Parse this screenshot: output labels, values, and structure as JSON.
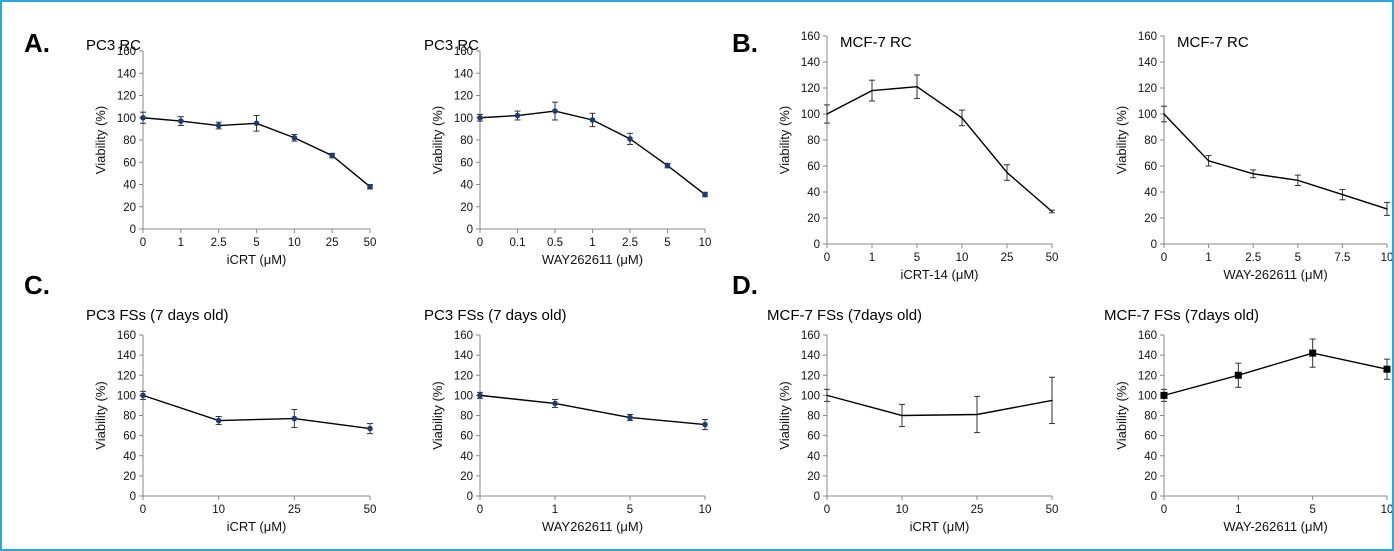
{
  "panel_labels": [
    "A.",
    "B.",
    "C.",
    "D."
  ],
  "chart_data": [
    {
      "type": "line",
      "panel": "A.",
      "title": "PC3 RC",
      "xlabel": "iCRT (μM)",
      "ylabel": "Viability (%)",
      "categories": [
        "0",
        "1",
        "2.5",
        "5",
        "10",
        "25",
        "50"
      ],
      "ylim": [
        0,
        160
      ],
      "yticks": [
        0,
        20,
        40,
        60,
        80,
        100,
        120,
        140,
        160
      ],
      "marker": "circle",
      "series": [
        {
          "values": [
            100,
            97,
            93,
            95,
            82,
            66,
            38
          ],
          "errors": [
            5,
            4,
            3,
            7,
            3,
            2,
            2
          ]
        }
      ]
    },
    {
      "type": "line",
      "panel": "",
      "title": "PC3 RC",
      "xlabel": "WAY262611 (μM)",
      "ylabel": "Viability (%)",
      "categories": [
        "0",
        "0.1",
        "0.5",
        "1",
        "2.5",
        "5",
        "10"
      ],
      "ylim": [
        0,
        160
      ],
      "yticks": [
        0,
        20,
        40,
        60,
        80,
        100,
        120,
        140,
        160
      ],
      "marker": "circle",
      "series": [
        {
          "values": [
            100,
            102,
            106,
            98,
            81,
            57,
            31
          ],
          "errors": [
            3,
            4,
            8,
            6,
            5,
            2,
            2
          ]
        }
      ]
    },
    {
      "type": "line",
      "panel": "B.",
      "title": "MCF-7 RC",
      "xlabel": "iCRT-14  (μM)",
      "ylabel": "Viability (%)",
      "categories": [
        "0",
        "1",
        "5",
        "10",
        "25",
        "50"
      ],
      "ylim": [
        0,
        160
      ],
      "yticks": [
        0,
        20,
        40,
        60,
        80,
        100,
        120,
        140,
        160
      ],
      "marker": "none",
      "series": [
        {
          "values": [
            100,
            118,
            121,
            97,
            55,
            25
          ],
          "errors": [
            7,
            8,
            9,
            6,
            6,
            1
          ]
        }
      ]
    },
    {
      "type": "line",
      "panel": "",
      "title": "MCF-7 RC",
      "xlabel": "WAY-262611 (μM)",
      "ylabel": "Viability (%)",
      "categories": [
        "0",
        "1",
        "2.5",
        "5",
        "7.5",
        "10"
      ],
      "ylim": [
        0,
        160
      ],
      "yticks": [
        0,
        20,
        40,
        60,
        80,
        100,
        120,
        140,
        160
      ],
      "marker": "none",
      "series": [
        {
          "values": [
            100,
            64,
            54,
            49,
            38,
            27
          ],
          "errors": [
            6,
            4,
            3,
            4,
            4,
            5
          ]
        }
      ]
    },
    {
      "type": "line",
      "panel": "C.",
      "title": "PC3 FSs (7 days old)",
      "xlabel": "iCRT (μM)",
      "ylabel": "Viability (%)",
      "categories": [
        "0",
        "10",
        "25",
        "50"
      ],
      "ylim": [
        0,
        160
      ],
      "yticks": [
        0,
        20,
        40,
        60,
        80,
        100,
        120,
        140,
        160
      ],
      "marker": "circle",
      "series": [
        {
          "values": [
            100,
            75,
            77,
            67
          ],
          "errors": [
            4,
            4,
            9,
            5
          ]
        }
      ]
    },
    {
      "type": "line",
      "panel": "",
      "title": "PC3 FSs (7 days old)",
      "xlabel": "WAY262611 (μM)",
      "ylabel": "Viability (%)",
      "categories": [
        "0",
        "1",
        "5",
        "10"
      ],
      "ylim": [
        0,
        160
      ],
      "yticks": [
        0,
        20,
        40,
        60,
        80,
        100,
        120,
        140,
        160
      ],
      "marker": "circle",
      "series": [
        {
          "values": [
            100,
            92,
            78,
            71
          ],
          "errors": [
            3,
            4,
            3,
            5
          ]
        }
      ]
    },
    {
      "type": "line",
      "panel": "D.",
      "title": "MCF-7 FSs (7days old)",
      "xlabel": "iCRT (μM)",
      "ylabel": "Viability (%)",
      "categories": [
        "0",
        "10",
        "25",
        "50"
      ],
      "ylim": [
        0,
        160
      ],
      "yticks": [
        0,
        20,
        40,
        60,
        80,
        100,
        120,
        140,
        160
      ],
      "marker": "none",
      "series": [
        {
          "values": [
            100,
            80,
            81,
            95
          ],
          "errors": [
            6,
            11,
            18,
            23
          ]
        }
      ]
    },
    {
      "type": "line",
      "panel": "",
      "title": "MCF-7 FSs (7days old)",
      "xlabel": "WAY-262611 (μM)",
      "ylabel": "Viability (%)",
      "categories": [
        "0",
        "1",
        "5",
        "10"
      ],
      "ylim": [
        0,
        160
      ],
      "yticks": [
        0,
        20,
        40,
        60,
        80,
        100,
        120,
        140,
        160
      ],
      "marker": "square",
      "series": [
        {
          "values": [
            100,
            120,
            142,
            126
          ],
          "errors": [
            6,
            12,
            14,
            10
          ]
        }
      ]
    }
  ],
  "colors": {
    "line": "#000000",
    "marker_circle": "#1f3b73",
    "marker_square": "#000000",
    "border": "#2aa9d8"
  }
}
